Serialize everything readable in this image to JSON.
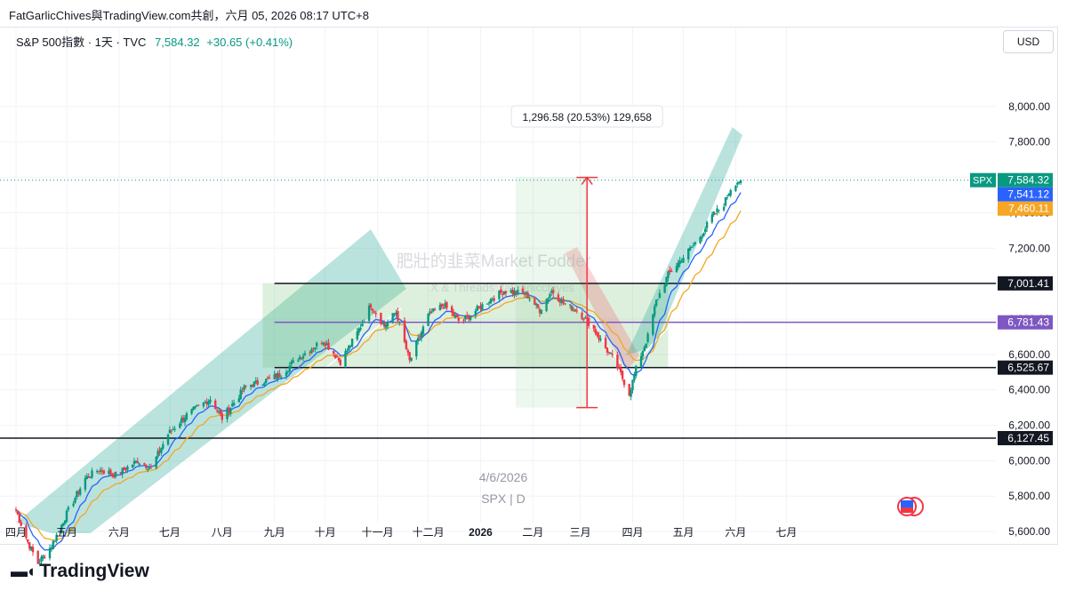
{
  "header": {
    "text": "FatGarlicChives與TradingView.com共創，六月 05, 2026 08:17 UTC+8"
  },
  "legend": {
    "symbol": "S&P 500指數 · 1天 · TVC",
    "last": "7,584.32",
    "change": "+30.65 (+0.41%)"
  },
  "currency": "USD",
  "watermark": {
    "title": "肥壯的韭菜Market Fodder",
    "subtitle": "X & Threads: fatgarlicchives",
    "date": "4/6/2026",
    "symbol": "SPX | D"
  },
  "measure": {
    "label": "1,296.58 (20.53%) 129,658"
  },
  "footer": {
    "brand": "TradingView"
  },
  "colors": {
    "up": "#089981",
    "down": "#f23645",
    "ema_fast": "#2962ff",
    "ema_slow": "#f5a623",
    "level": "#131722",
    "purple": "#7e57c2"
  },
  "chart_data": {
    "type": "candlestick",
    "ylim": [
      5500,
      8150
    ],
    "y_ticks": [
      "8,000.00",
      "7,800.00",
      "7,600.00",
      "7,400.00",
      "7,200.00",
      "7,000.00",
      "6,800.00",
      "6,600.00",
      "6,400.00",
      "6,200.00",
      "6,000.00",
      "5,800.00",
      "5,600.00"
    ],
    "y_tick_values": [
      8000,
      7800,
      7600,
      7400,
      7200,
      7000,
      6800,
      6600,
      6400,
      6200,
      6000,
      5800,
      5600
    ],
    "x_ticks": [
      "四月",
      "五月",
      "六月",
      "七月",
      "八月",
      "九月",
      "十月",
      "十一月",
      "十二月",
      "2026",
      "二月",
      "三月",
      "四月",
      "五月",
      "六月",
      "七月"
    ],
    "x_tick_dates": [
      "2025-04-01",
      "2025-05-01",
      "2025-06-01",
      "2025-07-01",
      "2025-08-01",
      "2025-09-01",
      "2025-10-01",
      "2025-11-01",
      "2025-12-01",
      "2026-01-01",
      "2026-02-01",
      "2026-03-01",
      "2026-04-01",
      "2026-05-01",
      "2026-06-01",
      "2026-07-01"
    ],
    "price_path": [
      [
        "2025-04-01",
        5720
      ],
      [
        "2025-04-08",
        5540
      ],
      [
        "2025-04-14",
        5420
      ],
      [
        "2025-04-22",
        5520
      ],
      [
        "2025-05-01",
        5700
      ],
      [
        "2025-05-12",
        5900
      ],
      [
        "2025-05-20",
        5950
      ],
      [
        "2025-05-30",
        5920
      ],
      [
        "2025-06-12",
        6000
      ],
      [
        "2025-06-20",
        5960
      ],
      [
        "2025-06-30",
        6150
      ],
      [
        "2025-07-10",
        6250
      ],
      [
        "2025-07-25",
        6350
      ],
      [
        "2025-08-01",
        6240
      ],
      [
        "2025-08-15",
        6420
      ],
      [
        "2025-08-29",
        6460
      ],
      [
        "2025-09-05",
        6490
      ],
      [
        "2025-09-15",
        6580
      ],
      [
        "2025-09-30",
        6680
      ],
      [
        "2025-10-10",
        6560
      ],
      [
        "2025-10-20",
        6720
      ],
      [
        "2025-10-28",
        6880
      ],
      [
        "2025-11-05",
        6760
      ],
      [
        "2025-11-12",
        6840
      ],
      [
        "2025-11-20",
        6560
      ],
      [
        "2025-12-01",
        6820
      ],
      [
        "2025-12-10",
        6880
      ],
      [
        "2025-12-20",
        6780
      ],
      [
        "2026-01-05",
        6900
      ],
      [
        "2026-01-15",
        6960
      ],
      [
        "2026-01-28",
        6940
      ],
      [
        "2026-02-05",
        6850
      ],
      [
        "2026-02-12",
        6960
      ],
      [
        "2026-02-20",
        6880
      ],
      [
        "2026-02-27",
        6850
      ],
      [
        "2026-03-08",
        6760
      ],
      [
        "2026-03-15",
        6650
      ],
      [
        "2026-03-22",
        6550
      ],
      [
        "2026-03-30",
        6380
      ],
      [
        "2026-04-04",
        6550
      ],
      [
        "2026-04-10",
        6700
      ],
      [
        "2026-04-15",
        6900
      ],
      [
        "2026-04-22",
        7050
      ],
      [
        "2026-05-01",
        7150
      ],
      [
        "2026-05-10",
        7250
      ],
      [
        "2026-05-18",
        7380
      ],
      [
        "2026-05-25",
        7450
      ],
      [
        "2026-05-30",
        7560
      ],
      [
        "2026-06-04",
        7584.32
      ]
    ],
    "last_date": "2026-06-04",
    "horizontal_levels": [
      {
        "value": 7001.41,
        "label": "7,001.41",
        "start": "2025-09-01",
        "color": "#131722"
      },
      {
        "value": 6781.43,
        "label": "6,781.43",
        "start": "2025-09-01",
        "color": "#7e57c2"
      },
      {
        "value": 6525.67,
        "label": "6,525.67",
        "start": "2025-09-01",
        "color": "#131722"
      },
      {
        "value": 6127.45,
        "label": "6,127.45",
        "start": "2025-03-20",
        "color": "#131722"
      }
    ],
    "price_labels": [
      {
        "value": 7584.32,
        "label": "7,584.32",
        "color": "#089981",
        "tag": "SPX"
      },
      {
        "value": 7541.12,
        "label": "7,541.12",
        "color": "#2962ff"
      },
      {
        "value": 7460.11,
        "label": "7,460.11",
        "color": "#f5a623"
      }
    ],
    "measure": {
      "date": "2026-03-05",
      "from": 6300,
      "to": 7600
    }
  }
}
